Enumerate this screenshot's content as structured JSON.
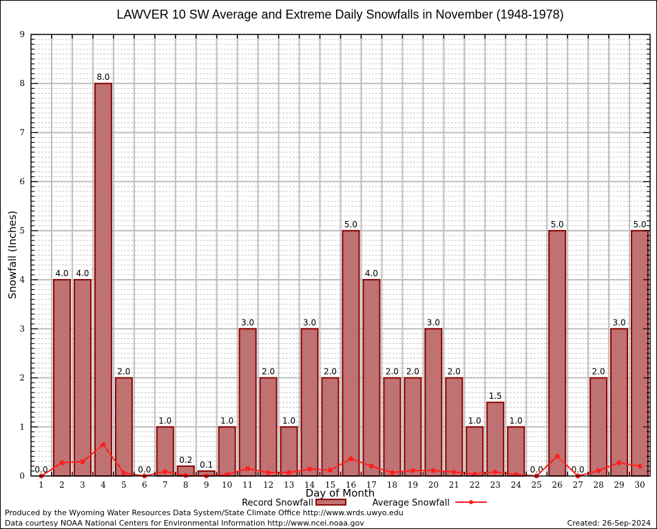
{
  "chart_data": {
    "type": "bar",
    "title": "LAWVER 10 SW Average and Extreme Daily Snowfalls in November (1948-1978)",
    "xlabel": "Day of Month",
    "ylabel": "Snowfall (Inches)",
    "ylim": [
      0,
      9
    ],
    "yticks": [
      "0",
      "1",
      "2",
      "3",
      "4",
      "5",
      "6",
      "7",
      "8",
      "9"
    ],
    "minor_grid_step": 0.1,
    "grid": true,
    "categories": [
      "1",
      "2",
      "3",
      "4",
      "5",
      "6",
      "7",
      "8",
      "9",
      "10",
      "11",
      "12",
      "13",
      "14",
      "15",
      "16",
      "17",
      "18",
      "19",
      "20",
      "21",
      "22",
      "23",
      "24",
      "25",
      "26",
      "27",
      "28",
      "29",
      "30"
    ],
    "series": [
      {
        "name": "Record Snowfall",
        "type": "bar",
        "color": "#8b0000",
        "values": [
          0.0,
          4.0,
          4.0,
          8.0,
          2.0,
          0.0,
          1.0,
          0.2,
          0.1,
          1.0,
          3.0,
          2.0,
          1.0,
          3.0,
          2.0,
          5.0,
          4.0,
          2.0,
          2.0,
          3.0,
          2.0,
          1.0,
          1.5,
          1.0,
          0.0,
          5.0,
          0.0,
          2.0,
          3.0,
          5.0
        ],
        "labels": [
          "0.0",
          "4.0",
          "4.0",
          "8.0",
          "2.0",
          "0.0",
          "1.0",
          "0.2",
          "0.1",
          "1.0",
          "3.0",
          "2.0",
          "1.0",
          "3.0",
          "2.0",
          "5.0",
          "4.0",
          "2.0",
          "2.0",
          "3.0",
          "2.0",
          "1.0",
          "1.5",
          "1.0",
          "0.0",
          "5.0",
          "0.0",
          "2.0",
          "3.0",
          "5.0"
        ]
      },
      {
        "name": "Average Snowfall",
        "type": "line",
        "color": "#ff2020",
        "values": [
          0.0,
          0.27,
          0.29,
          0.64,
          0.06,
          0.0,
          0.09,
          0.01,
          0.0,
          0.03,
          0.15,
          0.07,
          0.07,
          0.14,
          0.12,
          0.35,
          0.2,
          0.07,
          0.11,
          0.11,
          0.08,
          0.04,
          0.08,
          0.03,
          0.0,
          0.4,
          0.0,
          0.11,
          0.27,
          0.2
        ]
      }
    ],
    "legend": {
      "placement": "bottom-center",
      "entries": [
        "Record Snowfall",
        "Average Snowfall"
      ]
    }
  },
  "footer": {
    "line1": "Produced by the Wyoming Water Resources Data System/State Climate Office http://www.wrds.uwyo.edu",
    "line2": "Data courtesy NOAA National Centers for Environmental Information http://www.ncei.noaa.gov",
    "created": "Created: 26-Sep-2024"
  }
}
